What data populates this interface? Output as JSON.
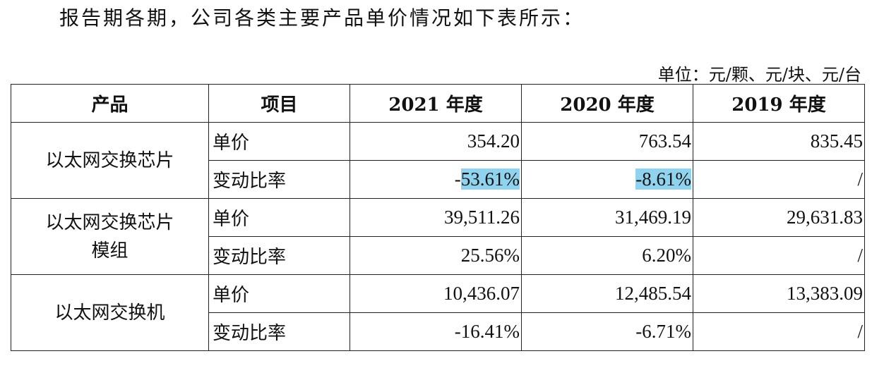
{
  "intro": "报告期各期，公司各类主要产品单价情况如下表所示：",
  "unit": "单位：元/颗、元/块、元/台",
  "table": {
    "headers": [
      "产品",
      "项目",
      "2021 年度",
      "2020 年度",
      "2019 年度"
    ],
    "groups": [
      {
        "product": "以太网交换芯片",
        "rows": [
          {
            "item": "单价",
            "v2021": "354.20",
            "v2020": "763.54",
            "v2019": "835.45"
          },
          {
            "item": "变动比率",
            "v2021_prefix": "-",
            "v2021_hl": "53.61%",
            "v2020": "-8.61%",
            "v2019": "/"
          }
        ]
      },
      {
        "product_line1": "以太网交换芯片",
        "product_line2": "模组",
        "rows": [
          {
            "item": "单价",
            "v2021": "39,511.26",
            "v2020": "31,469.19",
            "v2019": "29,631.83"
          },
          {
            "item": "变动比率",
            "v2021": "25.56%",
            "v2020": "6.20%",
            "v2019": "/"
          }
        ]
      },
      {
        "product": "以太网交换机",
        "rows": [
          {
            "item": "单价",
            "v2021": "10,436.07",
            "v2020": "12,485.54",
            "v2019": "13,383.09"
          },
          {
            "item": "变动比率",
            "v2021": "-16.41%",
            "v2020": "-6.71%",
            "v2019": "/"
          }
        ]
      }
    ]
  },
  "highlight_color": "#8fd3ee"
}
